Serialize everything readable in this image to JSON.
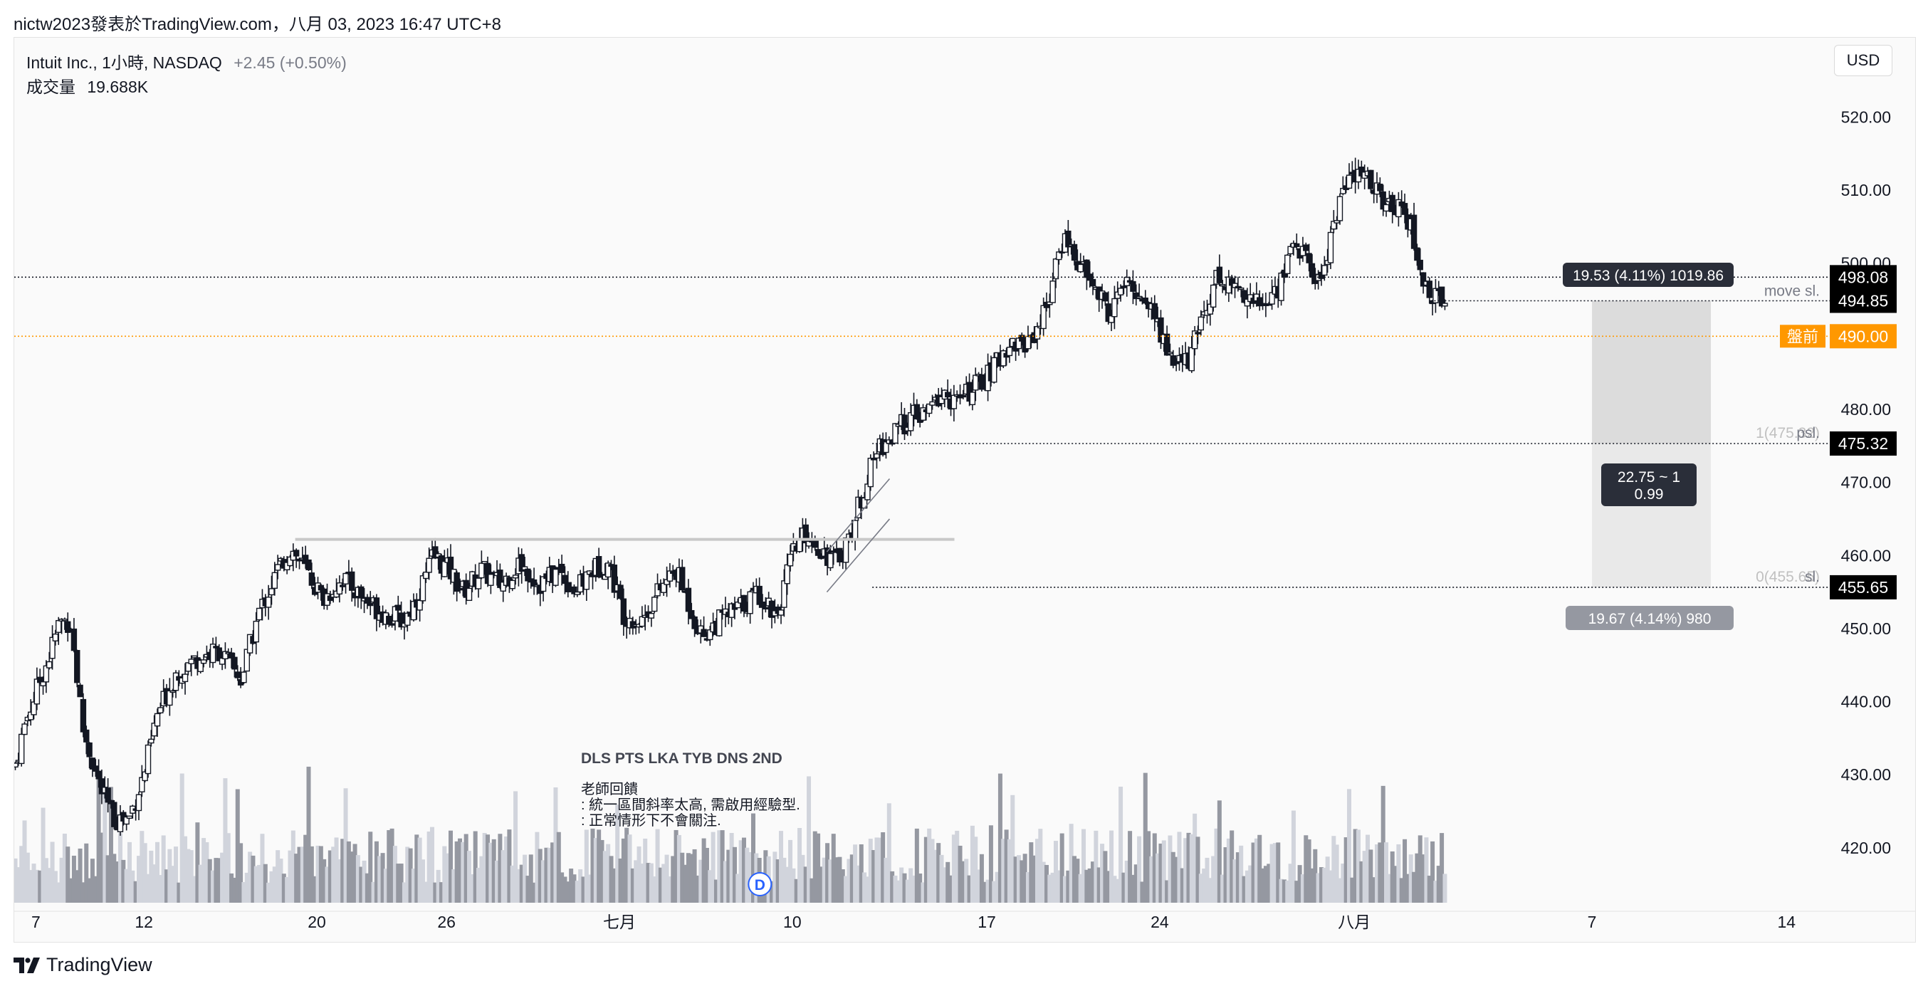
{
  "header": {
    "caption": "nictw2023發表於TradingView.com，八月 03, 2023 16:47 UTC+8"
  },
  "legend": {
    "symbol": "Intuit Inc., 1小時, NASDAQ",
    "change": "+2.45 (+0.50%)",
    "volume_label": "成交量",
    "volume_value": "19.688K"
  },
  "currency": "USD",
  "brand": "TradingView",
  "chart_data": {
    "type": "candlestick",
    "title": "Intuit Inc., 1小時, NASDAQ",
    "price_unit": "USD",
    "ylim": [
      412,
      525
    ],
    "y_ticks": [
      "520.00",
      "510.00",
      "500.00",
      "490.00",
      "480.00",
      "470.00",
      "460.00",
      "450.00",
      "440.00",
      "430.00",
      "420.00"
    ],
    "x_ticks": [
      "7",
      "12",
      "20",
      "26",
      "七月",
      "10",
      "17",
      "24",
      "八月",
      "7",
      "14"
    ],
    "x_tick_positions": [
      7,
      12,
      20,
      26,
      34,
      42,
      51,
      59,
      68,
      79,
      88
    ],
    "x_unit": "trading days from 2023-06-06 (date axis, June–August 2023)",
    "x_range": [
      6,
      90
    ],
    "grid": false,
    "candle_color": "#131722",
    "volume_color_up": "#d1d4dc",
    "volume_color_down": "#9598a1",
    "close_path": [
      {
        "x": 6.0,
        "price": 431
      },
      {
        "x": 6.5,
        "price": 437
      },
      {
        "x": 7.2,
        "price": 443
      },
      {
        "x": 7.6,
        "price": 446
      },
      {
        "x": 8.1,
        "price": 451
      },
      {
        "x": 8.6,
        "price": 451
      },
      {
        "x": 9.2,
        "price": 436
      },
      {
        "x": 10.0,
        "price": 428
      },
      {
        "x": 10.6,
        "price": 424
      },
      {
        "x": 11.3,
        "price": 424
      },
      {
        "x": 12.0,
        "price": 430
      },
      {
        "x": 12.6,
        "price": 438
      },
      {
        "x": 13.5,
        "price": 444
      },
      {
        "x": 14.5,
        "price": 446
      },
      {
        "x": 15.5,
        "price": 447
      },
      {
        "x": 16.5,
        "price": 443
      },
      {
        "x": 17.3,
        "price": 452
      },
      {
        "x": 18.2,
        "price": 458
      },
      {
        "x": 18.8,
        "price": 461
      },
      {
        "x": 19.5,
        "price": 458
      },
      {
        "x": 20.3,
        "price": 454
      },
      {
        "x": 21.2,
        "price": 457
      },
      {
        "x": 22.2,
        "price": 454
      },
      {
        "x": 23.2,
        "price": 452
      },
      {
        "x": 24.0,
        "price": 451
      },
      {
        "x": 24.6,
        "price": 454
      },
      {
        "x": 25.4,
        "price": 460
      },
      {
        "x": 26.1,
        "price": 458
      },
      {
        "x": 26.8,
        "price": 455
      },
      {
        "x": 27.6,
        "price": 458
      },
      {
        "x": 28.5,
        "price": 456
      },
      {
        "x": 29.4,
        "price": 459
      },
      {
        "x": 30.3,
        "price": 456
      },
      {
        "x": 31.2,
        "price": 458
      },
      {
        "x": 32.0,
        "price": 455
      },
      {
        "x": 32.7,
        "price": 458
      },
      {
        "x": 33.5,
        "price": 459
      },
      {
        "x": 34.2,
        "price": 452
      },
      {
        "x": 35.0,
        "price": 451
      },
      {
        "x": 35.8,
        "price": 455
      },
      {
        "x": 36.6,
        "price": 458
      },
      {
        "x": 37.8,
        "price": 449
      },
      {
        "x": 38.6,
        "price": 451
      },
      {
        "x": 39.6,
        "price": 453
      },
      {
        "x": 40.4,
        "price": 455
      },
      {
        "x": 41.3,
        "price": 452
      },
      {
        "x": 42.0,
        "price": 460
      },
      {
        "x": 42.6,
        "price": 463
      },
      {
        "x": 43.3,
        "price": 461
      },
      {
        "x": 44.0,
        "price": 459
      },
      {
        "x": 44.7,
        "price": 463
      },
      {
        "x": 45.4,
        "price": 470
      },
      {
        "x": 46.0,
        "price": 475
      },
      {
        "x": 46.6,
        "price": 476
      },
      {
        "x": 47.4,
        "price": 479
      },
      {
        "x": 48.1,
        "price": 479
      },
      {
        "x": 48.9,
        "price": 482
      },
      {
        "x": 49.7,
        "price": 481
      },
      {
        "x": 50.4,
        "price": 483
      },
      {
        "x": 51.2,
        "price": 485
      },
      {
        "x": 52.0,
        "price": 489
      },
      {
        "x": 52.8,
        "price": 489
      },
      {
        "x": 53.5,
        "price": 492
      },
      {
        "x": 54.1,
        "price": 498
      },
      {
        "x": 54.6,
        "price": 504
      },
      {
        "x": 55.2,
        "price": 500
      },
      {
        "x": 55.9,
        "price": 497
      },
      {
        "x": 56.7,
        "price": 493
      },
      {
        "x": 57.3,
        "price": 497
      },
      {
        "x": 58.0,
        "price": 496
      },
      {
        "x": 58.6,
        "price": 494
      },
      {
        "x": 59.2,
        "price": 489
      },
      {
        "x": 59.8,
        "price": 486
      },
      {
        "x": 60.4,
        "price": 487
      },
      {
        "x": 61.0,
        "price": 493
      },
      {
        "x": 61.6,
        "price": 498
      },
      {
        "x": 62.3,
        "price": 497
      },
      {
        "x": 63.0,
        "price": 496
      },
      {
        "x": 63.7,
        "price": 494
      },
      {
        "x": 64.4,
        "price": 496
      },
      {
        "x": 65.2,
        "price": 503
      },
      {
        "x": 65.9,
        "price": 500
      },
      {
        "x": 66.4,
        "price": 497
      },
      {
        "x": 67.0,
        "price": 505
      },
      {
        "x": 67.6,
        "price": 511
      },
      {
        "x": 68.3,
        "price": 512
      },
      {
        "x": 68.9,
        "price": 511
      },
      {
        "x": 69.5,
        "price": 507
      },
      {
        "x": 70.2,
        "price": 509
      },
      {
        "x": 70.6,
        "price": 505
      },
      {
        "x": 71.1,
        "price": 498
      },
      {
        "x": 71.7,
        "price": 495
      },
      {
        "x": 72.3,
        "price": 496
      }
    ],
    "volume_ylim": [
      0,
      60
    ],
    "horizontal_lines": [
      {
        "price": 498.08,
        "style": "dotted",
        "color": "#131722",
        "label": "498.08"
      },
      {
        "price": 494.85,
        "style": "dotted",
        "color": "#131722",
        "label": "494.85"
      },
      {
        "price": 490.0,
        "style": "dotted",
        "color": "#ff9800",
        "label": "490.00"
      },
      {
        "price": 475.32,
        "style": "dotted",
        "color": "#131722",
        "label": "475.32"
      },
      {
        "price": 455.65,
        "style": "dotted",
        "color": "#131722",
        "label": "455.65"
      }
    ],
    "premarket_label": "盤前",
    "level_texts": {
      "move_sl": "move sl.",
      "psl": "psl.",
      "sl": "sl.",
      "one": "1(475.32)",
      "zero": "0(455.65)"
    },
    "resistance_line": {
      "price": 462.2,
      "x_from": 19.0,
      "x_to": 49.5,
      "color": "#c8c8c8"
    },
    "channel_lines": [
      {
        "x_from": 43.6,
        "x_to": 46.5,
        "price_from": 460.5,
        "price_to": 470.5
      },
      {
        "x_from": 43.6,
        "x_to": 46.5,
        "price_from": 455.0,
        "price_to": 465.0
      }
    ],
    "position_box": {
      "x_from": 79.0,
      "x_to": 84.5,
      "top_price": 494.85,
      "entry_price": 475.32,
      "bottom_price": 455.65
    },
    "position_labels": {
      "target": "19.53 (4.11%) 1019.86",
      "ratio_line1": "22.75 ~ 1",
      "ratio_line2": "0.99",
      "stop": "19.67 (4.14%) 980"
    },
    "note": {
      "title": "DLS PTS LKA TYB DNS 2ND",
      "lines": [
        "老師回饋",
        ": 統一區間斜率太高, 需啟用經驗型.",
        ": 正常情形下不會關注."
      ]
    },
    "dividend_marker": "D"
  }
}
